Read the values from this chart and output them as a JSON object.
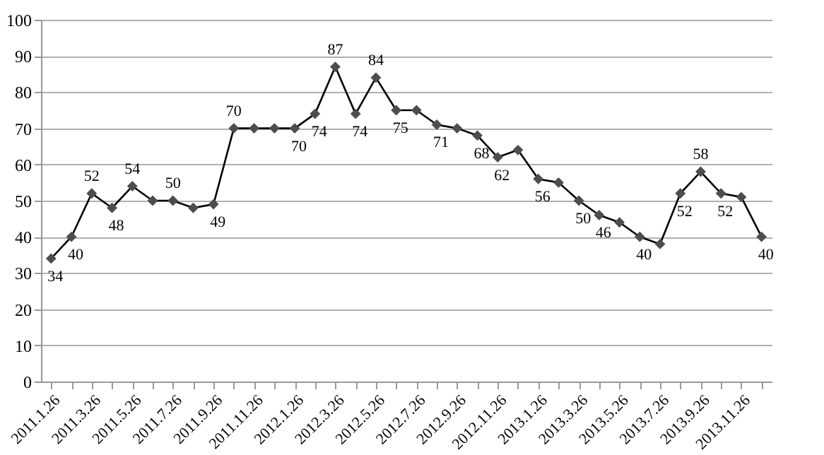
{
  "chart_data": {
    "type": "line",
    "categories": [
      "2011.1.26",
      null,
      "2011.3.26",
      null,
      "2011.5.26",
      null,
      "2011.7.26",
      null,
      "2011.9.26",
      null,
      "2011.11.26",
      null,
      "2012.1.26",
      null,
      "2012.3.26",
      null,
      "2012.5.26",
      null,
      "2012.7.26",
      null,
      "2012.9.26",
      null,
      "2012.11.26",
      null,
      "2013.1.26",
      null,
      "2013.3.26",
      null,
      "2013.5.26",
      null,
      "2013.7.26",
      null,
      "2013.9.26",
      null,
      "2013.11.26",
      null
    ],
    "series": [
      {
        "color": "#4d4d4d",
        "values": [
          34,
          40,
          52,
          48,
          54,
          50,
          50,
          48,
          49,
          70,
          70,
          70,
          70,
          74,
          87,
          74,
          84,
          75,
          75,
          71,
          70,
          68,
          62,
          64,
          56,
          55,
          50,
          46,
          44,
          40,
          38,
          52,
          58,
          52,
          51,
          40
        ],
        "value_labels": [
          "34",
          "40",
          "52",
          "48",
          "54",
          null,
          "50",
          null,
          "49",
          "70",
          null,
          null,
          "70",
          "74",
          "87",
          "74",
          "84",
          "75",
          null,
          "71",
          null,
          "68",
          "62",
          null,
          "56",
          null,
          "50",
          "46",
          null,
          "40",
          null,
          "52",
          "58",
          "52",
          null,
          "40"
        ]
      }
    ],
    "ylim": [
      0,
      100
    ],
    "yticks": [
      0,
      10,
      20,
      30,
      40,
      50,
      60,
      70,
      80,
      90,
      100
    ],
    "grid": "y",
    "marker": "diamond",
    "line_style": "solid"
  }
}
